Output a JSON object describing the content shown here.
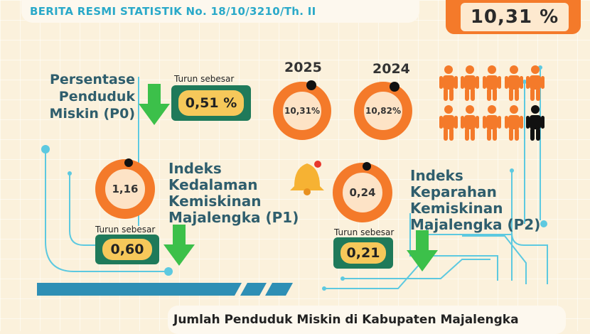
{
  "header": {
    "title": "BERITA RESMI STATISTIK  No. 18/10/3210/Th. II"
  },
  "top_value": "10,31 %",
  "p0": {
    "title_line1": "Persentase",
    "title_line2": "Penduduk",
    "title_line3": "Miskin (P0)",
    "decrease_label": "Turun sebesar",
    "decrease_value": "0,51 %",
    "year_2025": "2025",
    "year_2024": "2024",
    "value_2025": "10,31%",
    "value_2024": "10,82%"
  },
  "p1": {
    "value": "1,16",
    "title_line1": "Indeks",
    "title_line2": "Kedalaman",
    "title_line3": "Kemiskinan",
    "title_line4": "Majalengka (P1)",
    "decrease_label": "Turun sebesar",
    "decrease_value": "0,60"
  },
  "p2": {
    "value": "0,24",
    "title_line1": "Indeks",
    "title_line2": "Keparahan",
    "title_line3": "Kemiskinan",
    "title_line4": "Majalengka (P2)",
    "decrease_label": "Turun sebesar",
    "decrease_value": "0,21"
  },
  "footer": {
    "caption": "Jumlah Penduduk Miskin di Kabupaten Majalengka"
  },
  "icons": [
    "down-arrow-icon",
    "person-icon",
    "bell-icon"
  ],
  "colors": {
    "accent_orange": "#f47a2a",
    "heading_teal": "#2aa9c9",
    "pill_green": "#1f7a5a",
    "arrow_green": "#3cc04a"
  }
}
